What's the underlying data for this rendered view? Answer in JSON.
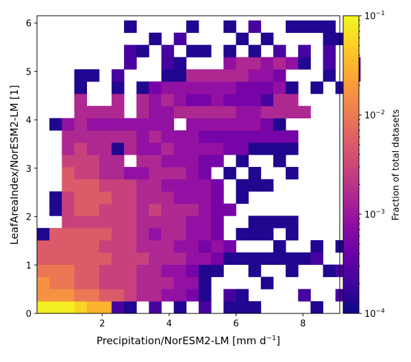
{
  "chart_data": {
    "type": "heatmap",
    "xlabel_main": "Precipitation/NorESM2-LM [mm d",
    "xlabel_sup": "−1",
    "xlabel_end": "]",
    "ylabel": "LeafAreaIndex/NorESM2-LM [1]",
    "colorbar_label": "Fraction of total datasets",
    "colorbar_ticks": [
      "10",
      "10",
      "10",
      "10"
    ],
    "colorbar_tick_exponents": [
      "−4",
      "−3",
      "−2",
      "−1"
    ],
    "color_scale": "log",
    "colormap": "plasma",
    "vmin": 0.0001,
    "vmax": 0.1,
    "xlim": [
      0.05,
      9.1
    ],
    "ylim": [
      0,
      6.15
    ],
    "xticks": [
      "2",
      "4",
      "6",
      "8"
    ],
    "yticks": [
      "0",
      "1",
      "2",
      "3",
      "4",
      "5",
      "6"
    ],
    "grid": {
      "x0": 0.05,
      "dx": 0.3717,
      "ny": 24,
      "dy": 0.2522
    },
    "rows": [
      "EEEDCCBA.B.A.B.AAA....A...",
      "8887766544332A.BA....B..B.",
      "8776655544433A....A.......",
      "7776655544332AA..A..A..AB.",
      "666666555444332AAAAAAAB...",
      "6666655544433232...A..A.A.",
      "A66666554344332.AAA.A.....",
      "..5555554444332..AAAA.....",
      ".A56655545444322..........",
      ".A5666554443332.A.........",
      "..6665554433332.AAA.......",
      "..655443344432.A.A..A.....",
      "..55544.4433322.A..A......",
      "..4544A4334333322AAAA.....",
      "..4444443433322222222.....",
      ".A343333333.3333332A......",
      "...4444.43344444334444....",
      "...4..4.4343223222B44.....",
      "...A..A.A23333332223A.A.A.",
      "...AA.B...AA44444332...A.B",
      ".......B..BA...344343A.B.B",
      ".......BA.B.AA.A.A.B.B.B..",
      ".........A.B....A.A....AA.",
      ".......A....A..A.B..AAAA.."
    ],
    "levels": {
      ".": null,
      "A": 0.00013,
      "B": 0.00022,
      "2": 0.0005,
      "3": 0.00085,
      "4": 0.0015,
      "5": 0.0028,
      "6": 0.0052,
      "7": 0.0095,
      "8": 0.017,
      "C": 0.032,
      "D": 0.055,
      "E": 0.085
    }
  }
}
